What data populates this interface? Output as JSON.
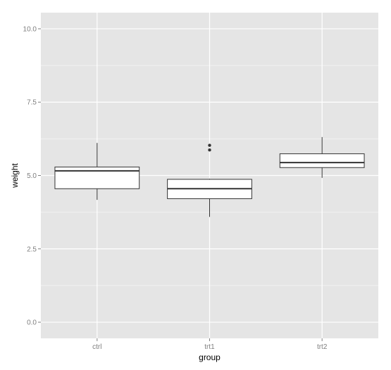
{
  "chart_data": {
    "type": "boxplot",
    "xlabel": "group",
    "ylabel": "weight",
    "categories": [
      "ctrl",
      "trt1",
      "trt2"
    ],
    "ylim": [
      -0.55,
      10.55
    ],
    "yticks": [
      0.0,
      2.5,
      5.0,
      7.5,
      10.0
    ],
    "ytick_labels": [
      "0.0",
      "2.5",
      "5.0",
      "7.5",
      "10.0"
    ],
    "boxes": [
      {
        "category": "ctrl",
        "lower_whisker": 4.17,
        "q1": 4.55,
        "median": 5.16,
        "q3": 5.29,
        "upper_whisker": 6.11,
        "outliers": []
      },
      {
        "category": "trt1",
        "lower_whisker": 3.59,
        "q1": 4.21,
        "median": 4.55,
        "q3": 4.87,
        "upper_whisker": 4.89,
        "outliers": [
          5.87,
          6.03
        ]
      },
      {
        "category": "trt2",
        "lower_whisker": 4.92,
        "q1": 5.27,
        "median": 5.44,
        "q3": 5.74,
        "upper_whisker": 6.31,
        "outliers": []
      }
    ],
    "grid": true,
    "colors": {
      "panel": "#e5e5e5",
      "grid_major": "#ffffff",
      "grid_minor": "#f2f2f2",
      "box_fill": "#ffffff",
      "box_line": "#333333"
    }
  }
}
